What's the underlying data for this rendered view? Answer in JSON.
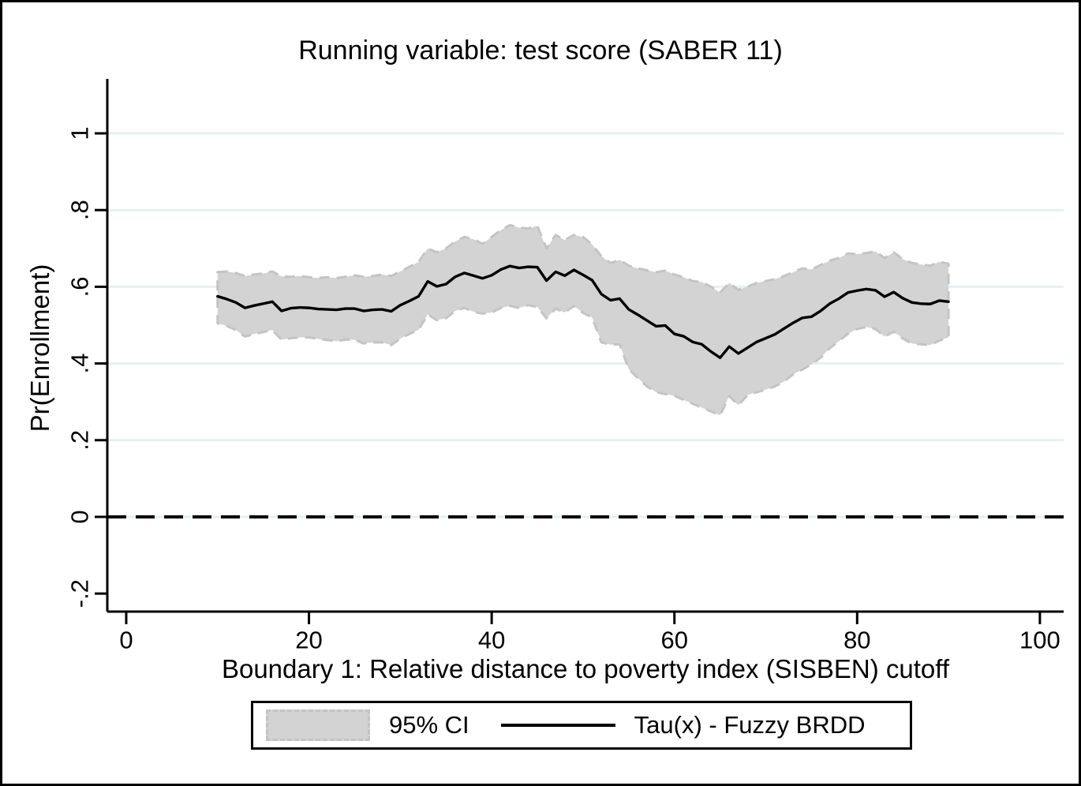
{
  "chart_data": {
    "type": "line",
    "title": "Running variable: test score (SABER 11)",
    "xlabel": "Boundary 1: Relative distance to poverty index (SISBEN) cutoff",
    "ylabel": "Pr(Enrollment)",
    "legend": [
      "95% CI",
      "Tau(x) - Fuzzy BRDD"
    ],
    "legend_position": "bottom",
    "grid": "horizontal",
    "xlim": [
      -2.07,
      102.6
    ],
    "ylim": [
      -0.247,
      1.142
    ],
    "x_ticks": [
      0,
      20,
      40,
      60,
      80,
      100
    ],
    "x_tick_labels": [
      "0",
      "20",
      "40",
      "60",
      "80",
      "100"
    ],
    "y_ticks": [
      1,
      0.8,
      0.6,
      0.4,
      0.2,
      0,
      -0.2
    ],
    "y_tick_labels": [
      "1",
      ".8",
      ".6",
      ".4",
      ".2",
      "0",
      "-.2"
    ],
    "y_grid_ticks": [
      1,
      0.8,
      0.6,
      0.4,
      0.2,
      0
    ],
    "reference_line": {
      "y": 0,
      "style": "dashed",
      "color": "#000000"
    },
    "colors": {
      "band_fill": "#d3d3d3",
      "band_edge": "#c4c4c4",
      "line": "#000000",
      "grid": "#e6f0f2",
      "axis": "#000000",
      "background": "#ffffff"
    },
    "x": [
      10,
      11,
      12,
      13,
      14,
      15,
      16,
      17,
      18,
      19,
      20,
      21,
      22,
      23,
      24,
      25,
      26,
      27,
      28,
      29,
      30,
      31,
      32,
      33,
      34,
      35,
      36,
      37,
      38,
      39,
      40,
      41,
      42,
      43,
      44,
      45,
      46,
      47,
      48,
      49,
      50,
      51,
      52,
      53,
      54,
      55,
      56,
      57,
      58,
      59,
      60,
      61,
      62,
      63,
      64,
      65,
      66,
      67,
      68,
      69,
      70,
      71,
      72,
      73,
      74,
      75,
      76,
      77,
      78,
      79,
      80,
      81,
      82,
      83,
      84,
      85,
      86,
      87,
      88,
      89,
      90
    ],
    "series": [
      {
        "name": "Tau(x) - Fuzzy BRDD",
        "values": [
          0.575,
          0.568,
          0.559,
          0.545,
          0.551,
          0.556,
          0.561,
          0.537,
          0.544,
          0.546,
          0.545,
          0.542,
          0.541,
          0.54,
          0.543,
          0.543,
          0.537,
          0.54,
          0.541,
          0.536,
          0.552,
          0.563,
          0.575,
          0.614,
          0.601,
          0.607,
          0.626,
          0.636,
          0.629,
          0.622,
          0.63,
          0.645,
          0.654,
          0.649,
          0.652,
          0.651,
          0.616,
          0.639,
          0.629,
          0.644,
          0.631,
          0.617,
          0.581,
          0.565,
          0.569,
          0.541,
          0.527,
          0.512,
          0.497,
          0.499,
          0.477,
          0.471,
          0.456,
          0.45,
          0.431,
          0.415,
          0.444,
          0.426,
          0.441,
          0.456,
          0.466,
          0.476,
          0.491,
          0.506,
          0.519,
          0.522,
          0.537,
          0.556,
          0.569,
          0.585,
          0.59,
          0.594,
          0.591,
          0.574,
          0.586,
          0.57,
          0.559,
          0.556,
          0.555,
          0.564,
          0.561
        ]
      },
      {
        "name": "95% CI upper",
        "values": [
          0.638,
          0.64,
          0.636,
          0.628,
          0.632,
          0.635,
          0.64,
          0.627,
          0.626,
          0.628,
          0.625,
          0.623,
          0.625,
          0.623,
          0.626,
          0.63,
          0.626,
          0.628,
          0.632,
          0.628,
          0.64,
          0.652,
          0.665,
          0.7,
          0.69,
          0.7,
          0.718,
          0.73,
          0.724,
          0.712,
          0.73,
          0.748,
          0.761,
          0.754,
          0.752,
          0.759,
          0.7,
          0.735,
          0.722,
          0.735,
          0.73,
          0.71,
          0.68,
          0.662,
          0.67,
          0.655,
          0.648,
          0.643,
          0.638,
          0.642,
          0.632,
          0.625,
          0.615,
          0.612,
          0.6,
          0.585,
          0.61,
          0.592,
          0.6,
          0.61,
          0.615,
          0.62,
          0.628,
          0.638,
          0.648,
          0.645,
          0.657,
          0.668,
          0.675,
          0.687,
          0.685,
          0.688,
          0.692,
          0.675,
          0.69,
          0.672,
          0.662,
          0.658,
          0.655,
          0.665,
          0.66
        ]
      },
      {
        "name": "95% CI lower",
        "values": [
          0.505,
          0.498,
          0.487,
          0.47,
          0.477,
          0.482,
          0.487,
          0.462,
          0.466,
          0.468,
          0.468,
          0.464,
          0.461,
          0.458,
          0.462,
          0.462,
          0.452,
          0.455,
          0.455,
          0.448,
          0.465,
          0.477,
          0.488,
          0.528,
          0.513,
          0.518,
          0.537,
          0.545,
          0.535,
          0.53,
          0.533,
          0.545,
          0.55,
          0.545,
          0.552,
          0.547,
          0.518,
          0.543,
          0.533,
          0.55,
          0.532,
          0.52,
          0.455,
          0.449,
          0.45,
          0.385,
          0.362,
          0.34,
          0.325,
          0.32,
          0.316,
          0.305,
          0.295,
          0.285,
          0.275,
          0.265,
          0.315,
          0.291,
          0.318,
          0.325,
          0.332,
          0.34,
          0.353,
          0.372,
          0.384,
          0.398,
          0.415,
          0.44,
          0.458,
          0.478,
          0.49,
          0.495,
          0.49,
          0.47,
          0.483,
          0.465,
          0.452,
          0.45,
          0.448,
          0.46,
          0.468
        ]
      }
    ]
  }
}
